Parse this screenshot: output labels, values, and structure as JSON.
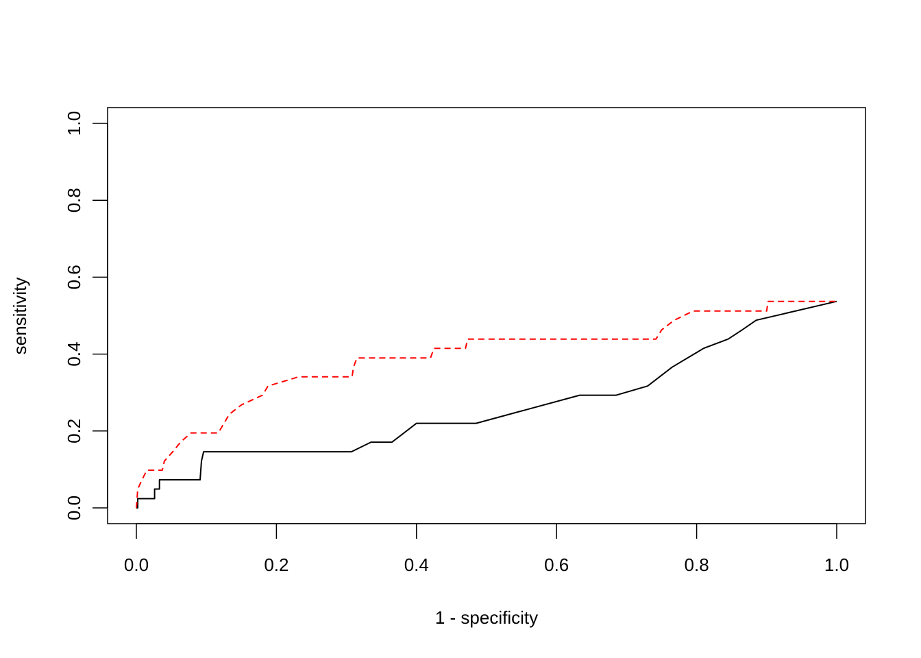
{
  "chart_data": {
    "type": "line",
    "xlabel": "1 - specificity",
    "ylabel": "sensitivity",
    "xlim": [
      0,
      1
    ],
    "ylim": [
      0,
      1
    ],
    "xticks": [
      0.0,
      0.2,
      0.4,
      0.6,
      0.8,
      1.0
    ],
    "xtick_labels": [
      "0.0",
      "0.2",
      "0.4",
      "0.6",
      "0.8",
      "1.0"
    ],
    "yticks": [
      0.0,
      0.2,
      0.4,
      0.6,
      0.8,
      1.0
    ],
    "ytick_labels": [
      "0.0",
      "0.2",
      "0.4",
      "0.6",
      "0.8",
      "1.0"
    ],
    "grid": false,
    "legend": "none",
    "series": [
      {
        "color": "#000000",
        "style": "solid",
        "points": [
          [
            0.0,
            0.0
          ],
          [
            0.002,
            0.0
          ],
          [
            0.002,
            0.024
          ],
          [
            0.026,
            0.024
          ],
          [
            0.026,
            0.049
          ],
          [
            0.033,
            0.049
          ],
          [
            0.033,
            0.073
          ],
          [
            0.091,
            0.073
          ],
          [
            0.093,
            0.122
          ],
          [
            0.096,
            0.146
          ],
          [
            0.307,
            0.146
          ],
          [
            0.335,
            0.171
          ],
          [
            0.365,
            0.171
          ],
          [
            0.4,
            0.22
          ],
          [
            0.485,
            0.22
          ],
          [
            0.633,
            0.293
          ],
          [
            0.685,
            0.293
          ],
          [
            0.73,
            0.317
          ],
          [
            0.765,
            0.366
          ],
          [
            0.81,
            0.415
          ],
          [
            0.845,
            0.439
          ],
          [
            0.865,
            0.463
          ],
          [
            0.885,
            0.488
          ],
          [
            1.0,
            0.537
          ]
        ]
      },
      {
        "color": "#ff0000",
        "style": "dashed",
        "points": [
          [
            0.0,
            0.0
          ],
          [
            0.002,
            0.049
          ],
          [
            0.008,
            0.073
          ],
          [
            0.015,
            0.098
          ],
          [
            0.037,
            0.098
          ],
          [
            0.04,
            0.122
          ],
          [
            0.052,
            0.146
          ],
          [
            0.063,
            0.171
          ],
          [
            0.078,
            0.195
          ],
          [
            0.117,
            0.195
          ],
          [
            0.125,
            0.22
          ],
          [
            0.133,
            0.244
          ],
          [
            0.15,
            0.268
          ],
          [
            0.18,
            0.293
          ],
          [
            0.188,
            0.317
          ],
          [
            0.232,
            0.341
          ],
          [
            0.308,
            0.341
          ],
          [
            0.31,
            0.366
          ],
          [
            0.315,
            0.39
          ],
          [
            0.42,
            0.39
          ],
          [
            0.425,
            0.415
          ],
          [
            0.47,
            0.415
          ],
          [
            0.473,
            0.439
          ],
          [
            0.742,
            0.439
          ],
          [
            0.75,
            0.463
          ],
          [
            0.768,
            0.488
          ],
          [
            0.795,
            0.512
          ],
          [
            0.9,
            0.512
          ],
          [
            0.902,
            0.537
          ],
          [
            1.0,
            0.537
          ]
        ]
      }
    ]
  }
}
